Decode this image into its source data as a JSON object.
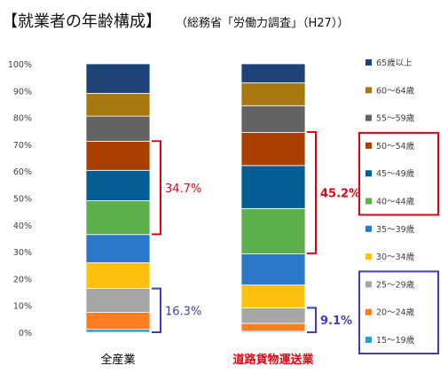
{
  "chart_data": {
    "type": "bar",
    "stacked": true,
    "normalized": true,
    "title": "【就業者の年齢構成】",
    "subtitle": "（総務省「労働力調査」（H27））",
    "categories": [
      "全産業",
      "道路貨物運送業"
    ],
    "category_colors": [
      "#000000",
      "#e60012"
    ],
    "ylim": [
      0,
      100
    ],
    "y_ticks": [
      "0%",
      "10%",
      "20%",
      "30%",
      "40%",
      "50%",
      "60%",
      "70%",
      "80%",
      "90%",
      "100%"
    ],
    "grid": false,
    "legend_position": "right",
    "series": [
      {
        "name": "15～19歳",
        "color": "#2e9bd6",
        "values": [
          1.1,
          0.4
        ]
      },
      {
        "name": "20～24歳",
        "color": "#fd7e22",
        "values": [
          6.3,
          2.9
        ]
      },
      {
        "name": "25～29歳",
        "color": "#a6a6a6",
        "values": [
          8.9,
          5.8
        ]
      },
      {
        "name": "30～34歳",
        "color": "#fdc00f",
        "values": [
          9.6,
          8.5
        ]
      },
      {
        "name": "35～39歳",
        "color": "#2b78c9",
        "values": [
          10.5,
          11.6
        ]
      },
      {
        "name": "40～44歳",
        "color": "#5daf4d",
        "values": [
          12.6,
          16.9
        ]
      },
      {
        "name": "45～49歳",
        "color": "#025d92",
        "values": [
          11.3,
          16.0
        ]
      },
      {
        "name": "50～54歳",
        "color": "#a94002",
        "values": [
          10.8,
          12.3
        ]
      },
      {
        "name": "55～59歳",
        "color": "#636363",
        "values": [
          9.4,
          10.0
        ]
      },
      {
        "name": "60～64歳",
        "color": "#a6780e",
        "values": [
          8.5,
          8.5
        ]
      },
      {
        "name": "65歳以上",
        "color": "#1e4477",
        "values": [
          11.0,
          7.1
        ]
      }
    ],
    "annotations": [
      {
        "text": "34.7%",
        "color": "#e60012",
        "category": 0,
        "from": 36.5,
        "to": 71.2,
        "bold": false
      },
      {
        "text": "16.3%",
        "color": "#3d3fb6",
        "category": 0,
        "from": 0,
        "to": 16.3,
        "bold": false
      },
      {
        "text": "45.2%",
        "color": "#e60012",
        "category": 1,
        "from": 29.4,
        "to": 74.6,
        "bold": true
      },
      {
        "text": "9.1%",
        "color": "#3d3fb6",
        "category": 1,
        "from": 0,
        "to": 9.1,
        "bold": true
      }
    ],
    "legend_groups": [
      {
        "color": "#e60012",
        "series": [
          "50～54歳",
          "45～49歳",
          "40～44歳"
        ]
      },
      {
        "color": "#3d3fb6",
        "series": [
          "25～29歳",
          "20～24歳",
          "15～19歳"
        ]
      }
    ]
  }
}
